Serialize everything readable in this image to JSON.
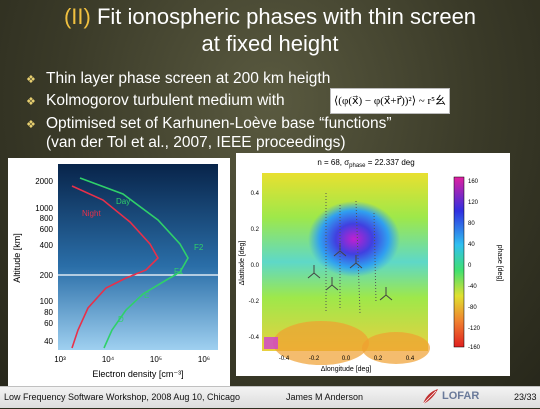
{
  "slide": {
    "title_prefix": "(II)",
    "title_line1": "Fit ionospheric phases with thin screen",
    "title_line2": "at fixed height",
    "bullets": [
      "Thin layer phase screen at 200 km heigth",
      "Kolmogorov turbulent medium with",
      "Optimised set of Karhunen-Loève base “functions”",
      "(van der Tol et al., 2007, IEEE proceedings)"
    ],
    "formula": "⟨(φ(x⃗) − φ(x⃗+r⃗))²⟩ ~ r⁵⼳",
    "bullet_marker": "❖"
  },
  "altitude_plot": {
    "ylabel": "Altitude [km]",
    "xlabel": "Electron density [cm⁻³]",
    "y_ticks": [
      "2000",
      "1000",
      "800",
      "600",
      "400",
      "200",
      "100",
      "80",
      "60",
      "40"
    ],
    "x_ticks": [
      "10³",
      "10⁴",
      "10⁵",
      "10⁶"
    ],
    "labels": {
      "day": "Day",
      "night": "Night",
      "f2": "F2",
      "f1": "F1",
      "e": "E",
      "d": "D"
    },
    "colors": {
      "day": "#2fd06a",
      "night": "#e8304a",
      "bg_top": "#08244a",
      "bg_bottom": "#9fd0f0"
    },
    "highlight_altitude_km": 200
  },
  "phase_map": {
    "title": "n = 68, σphase = 22.337 deg",
    "title_n": "n = 68, σ",
    "title_sub": "phase",
    "title_val": " = 22.337 deg",
    "xlabel": "Δlongitude [deg]",
    "ylabel": "Δlatitude [deg]",
    "x_ticks": [
      "-0.4",
      "-0.2",
      "0.0",
      "0.2",
      "0.4"
    ],
    "y_ticks": [
      "0.4",
      "0.2",
      "0.0",
      "-0.2",
      "-0.4"
    ],
    "colorbar_label": "phase [deg]",
    "colorbar_ticks": [
      "160",
      "120",
      "80",
      "40",
      "0",
      "-40",
      "-80",
      "-120",
      "-160"
    ]
  },
  "footer": {
    "workshop": "Low Frequency Software Workshop, 2008 Aug 10, Chicago",
    "author": "James M  Anderson",
    "logo": "LOFAR",
    "page": "23/33"
  }
}
